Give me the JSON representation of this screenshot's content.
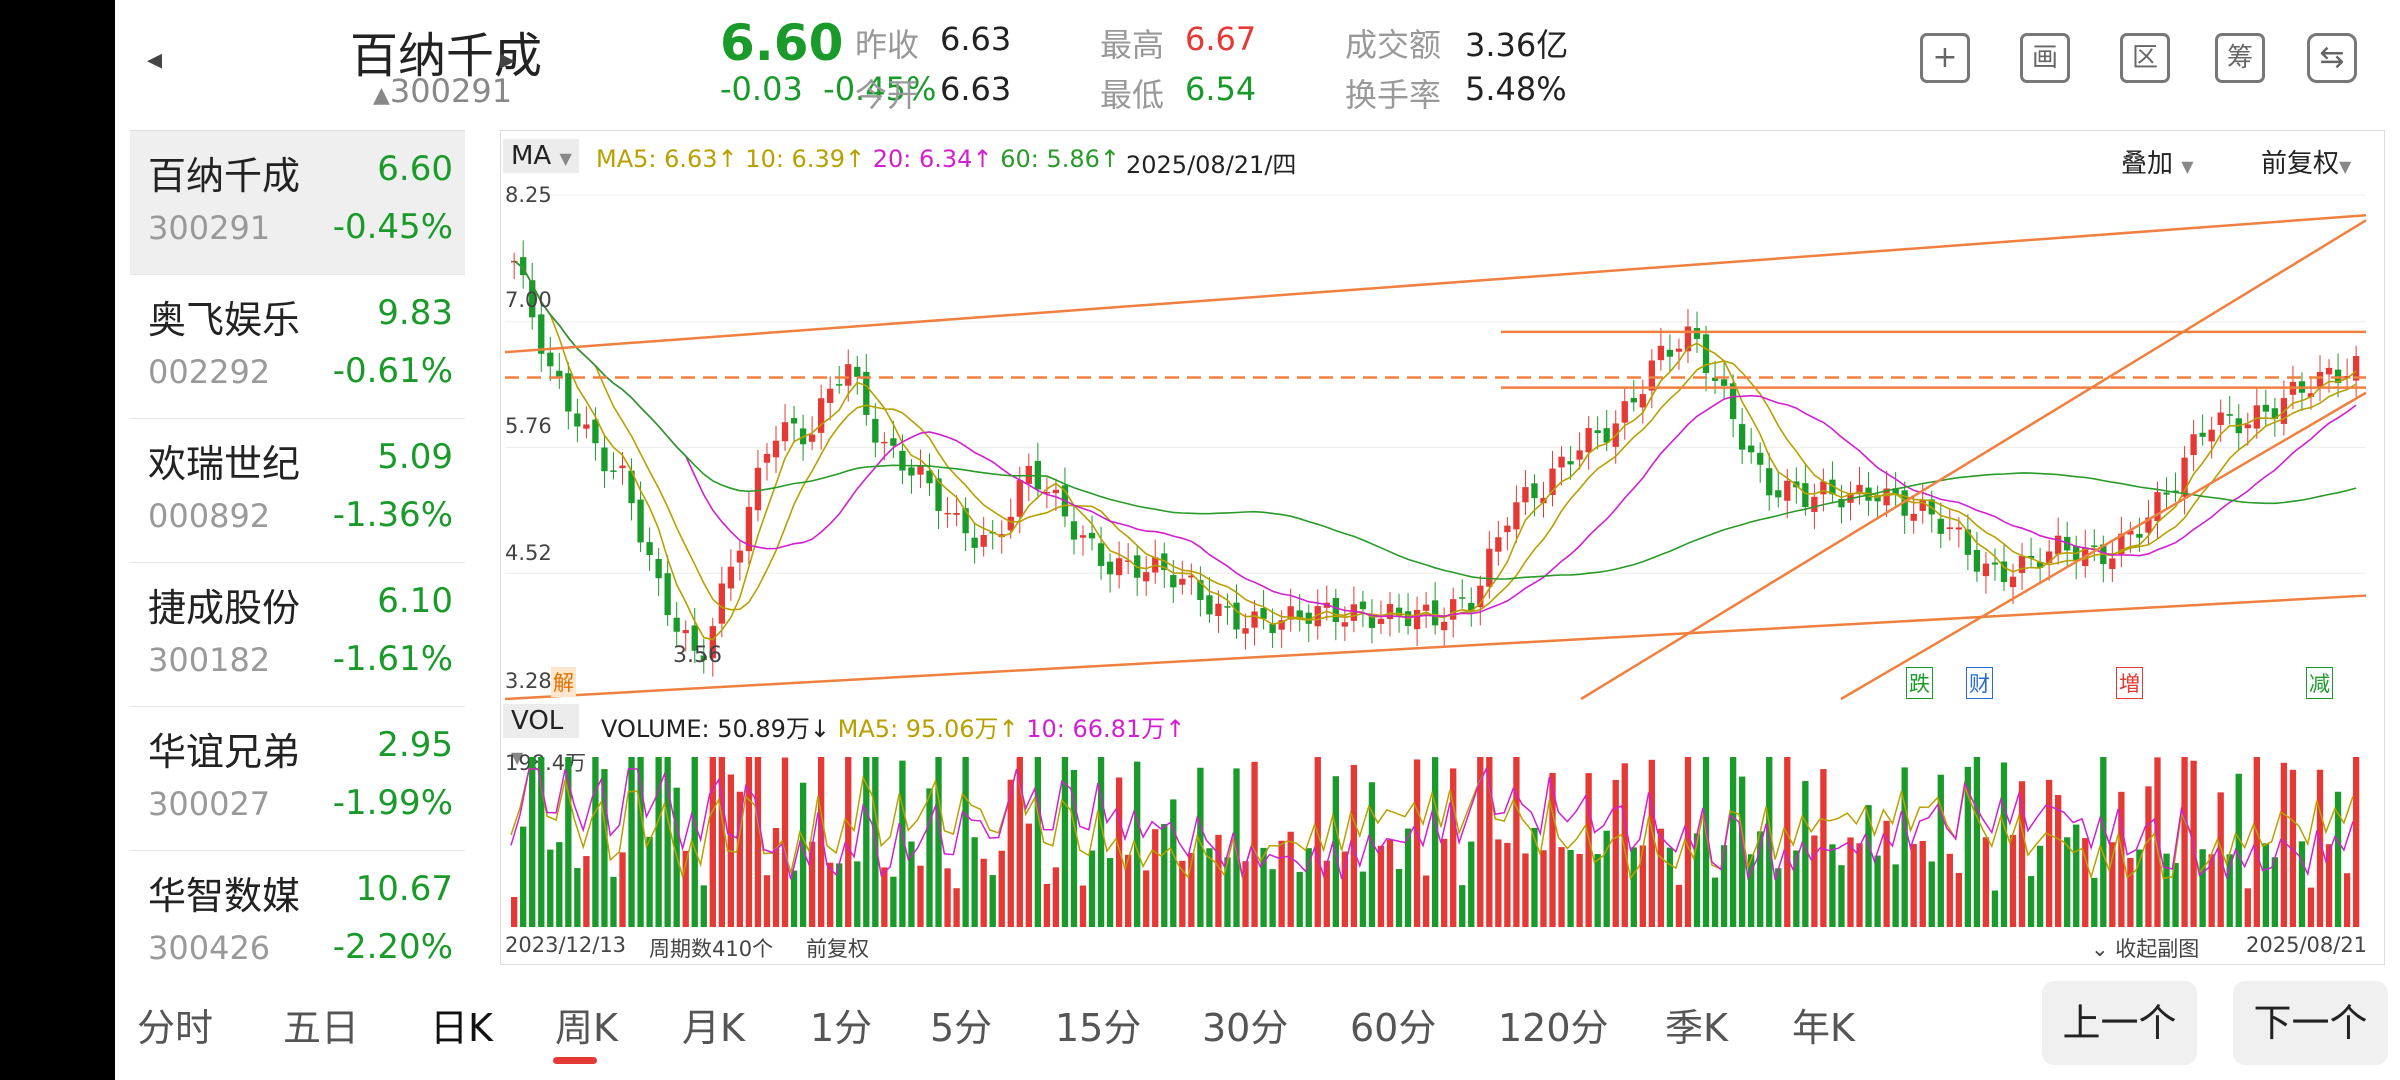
{
  "header": {
    "stock_name": "百纳千成",
    "stock_code": "300291",
    "code_prefix": "▲",
    "price": "6.60",
    "change": "-0.03",
    "change_pct": "-0.45%",
    "prev_close_label": "昨收",
    "prev_close": "6.63",
    "open_label": "今开",
    "open": "6.63",
    "high_label": "最高",
    "high": "6.67",
    "low_label": "最低",
    "low": "6.54",
    "turnover_label": "成交额",
    "turnover": "3.36亿",
    "turnover_rate_label": "换手率",
    "turnover_rate": "5.48%",
    "tools": [
      {
        "icon": "plus-icon",
        "glyph": "+"
      },
      {
        "icon": "draw-icon",
        "glyph": "画"
      },
      {
        "icon": "range-icon",
        "glyph": "区"
      },
      {
        "icon": "chips-icon",
        "glyph": "筹"
      },
      {
        "icon": "rotate-icon",
        "glyph": "⇆"
      }
    ]
  },
  "sidebar": {
    "items": [
      {
        "name": "百纳千成",
        "code": "300291",
        "price": "6.60",
        "pct": "-0.45%"
      },
      {
        "name": "奥飞娱乐",
        "code": "002292",
        "price": "9.83",
        "pct": "-0.61%"
      },
      {
        "name": "欢瑞世纪",
        "code": "000892",
        "price": "5.09",
        "pct": "-1.36%"
      },
      {
        "name": "捷成股份",
        "code": "300182",
        "price": "6.10",
        "pct": "-1.61%"
      },
      {
        "name": "华谊兄弟",
        "code": "300027",
        "price": "2.95",
        "pct": "-1.99%"
      },
      {
        "name": "华智数媒",
        "code": "300426",
        "price": "10.67",
        "pct": "-2.20%"
      }
    ]
  },
  "chart": {
    "ma_button": "MA",
    "ma5": "MA5: 6.63↑",
    "ma10": "10: 6.39↑",
    "ma20": "20: 6.34↑",
    "ma60": "60: 5.86↑",
    "date": "2025/08/21/四",
    "overlay": "叠加",
    "adjust": "前复权",
    "y_labels": [
      "8.25",
      "7.00",
      "5.76",
      "4.52",
      "3.28"
    ],
    "low_marker": "3.56",
    "event_markers": [
      "解",
      "跌",
      "财",
      "増",
      "减"
    ],
    "vol_button": "VOL",
    "volume": "VOLUME: 50.89万↓",
    "vol_ma5": "MA5: 95.06万↑",
    "vol_ma10": "10: 66.81万↑",
    "vol_max": "198.4万",
    "start_date": "2023/12/13",
    "period_count": "周期数410个",
    "footer_adjust": "前复权",
    "collapse": "收起副图",
    "end_date": "2025/08/21",
    "colors": {
      "ma5": "#b8a000",
      "ma10": "#b8a000",
      "ma20": "#d020d0",
      "ma60": "#2a9a2a",
      "up": "#e53935",
      "down": "#1a9a2a",
      "trend": "#f08040"
    }
  },
  "chart_data": {
    "type": "candlestick",
    "y_range": [
      3.28,
      8.25
    ],
    "close_samples": [
      7.6,
      6.4,
      5.9,
      5.5,
      4.2,
      3.6,
      4.8,
      5.9,
      5.8,
      6.7,
      5.8,
      5.4,
      5.0,
      4.9,
      5.5,
      5.0,
      4.7,
      4.6,
      4.4,
      4.2,
      4.1,
      4.0,
      4.1,
      4.2,
      4.1,
      4.0,
      4.3,
      5.2,
      5.3,
      5.8,
      6.1,
      6.6,
      6.8,
      6.2,
      5.4,
      5.2,
      5.3,
      5.4,
      5.1,
      4.9,
      4.6,
      4.6,
      4.7,
      4.7,
      5.0,
      5.3,
      6.0,
      6.1,
      6.2,
      6.35,
      6.6
    ]
  },
  "tabs": {
    "items": [
      "分时",
      "五日",
      "日K",
      "周K",
      "月K",
      "1分",
      "5分",
      "15分",
      "30分",
      "60分",
      "120分",
      "季K",
      "年K"
    ],
    "prev": "上一个",
    "next": "下一个"
  }
}
